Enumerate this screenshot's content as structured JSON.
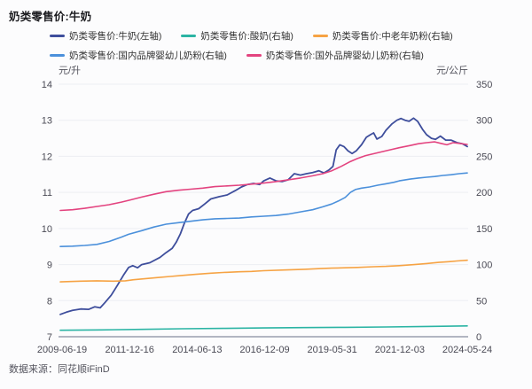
{
  "page": {
    "title": "奶类零售价:牛奶",
    "source": "数据来源：同花顺iFinD"
  },
  "axes": {
    "left_unit": "元/升",
    "right_unit": "元/公斤"
  },
  "colors": {
    "background": "#FCFCFD",
    "grid": "#EDEEF3",
    "axis_line": "#B2B6C2",
    "tick_text": "#4A4A55",
    "title_text": "#1B1B1F",
    "legend_text": "#333333",
    "unit_text": "#55555F",
    "source_text": "#55555F"
  },
  "chart_data": {
    "type": "line",
    "title": "奶类零售价:牛奶",
    "grid": true,
    "legend_position": "top-left",
    "x_tick_labels": [
      "2009-06-19",
      "2011-12-16",
      "2014-06-13",
      "2016-12-09",
      "2019-05-31",
      "2021-12-03",
      "2024-05-24"
    ],
    "x_range_note": "x values below are fractions 0-1 spanning 2009-06-19 to 2024-05-24",
    "left_axis": {
      "label": "元/升",
      "min": 7,
      "max": 14,
      "ticks": [
        14,
        13,
        12,
        11,
        10,
        9,
        8,
        7
      ]
    },
    "right_axis": {
      "label": "元/公斤",
      "min": 0,
      "max": 350,
      "ticks": [
        350,
        300,
        250,
        200,
        150,
        100,
        50,
        0
      ]
    },
    "series": [
      {
        "name": "奶类零售价:牛奶(左轴)",
        "axis": "left",
        "color": "#3E4E9C",
        "points": [
          [
            0,
            7.62
          ],
          [
            0.015,
            7.68
          ],
          [
            0.03,
            7.73
          ],
          [
            0.05,
            7.77
          ],
          [
            0.07,
            7.76
          ],
          [
            0.085,
            7.83
          ],
          [
            0.098,
            7.8
          ],
          [
            0.11,
            7.95
          ],
          [
            0.125,
            8.15
          ],
          [
            0.14,
            8.42
          ],
          [
            0.155,
            8.7
          ],
          [
            0.168,
            8.92
          ],
          [
            0.178,
            8.97
          ],
          [
            0.19,
            8.91
          ],
          [
            0.2,
            9.0
          ],
          [
            0.22,
            9.05
          ],
          [
            0.245,
            9.2
          ],
          [
            0.26,
            9.33
          ],
          [
            0.275,
            9.45
          ],
          [
            0.285,
            9.62
          ],
          [
            0.295,
            9.85
          ],
          [
            0.305,
            10.15
          ],
          [
            0.315,
            10.4
          ],
          [
            0.325,
            10.5
          ],
          [
            0.34,
            10.55
          ],
          [
            0.355,
            10.68
          ],
          [
            0.37,
            10.82
          ],
          [
            0.39,
            10.88
          ],
          [
            0.41,
            10.93
          ],
          [
            0.43,
            11.05
          ],
          [
            0.445,
            11.15
          ],
          [
            0.46,
            11.22
          ],
          [
            0.475,
            11.25
          ],
          [
            0.49,
            11.22
          ],
          [
            0.5,
            11.32
          ],
          [
            0.515,
            11.4
          ],
          [
            0.53,
            11.32
          ],
          [
            0.545,
            11.3
          ],
          [
            0.56,
            11.35
          ],
          [
            0.575,
            11.52
          ],
          [
            0.59,
            11.48
          ],
          [
            0.605,
            11.52
          ],
          [
            0.62,
            11.55
          ],
          [
            0.635,
            11.6
          ],
          [
            0.648,
            11.54
          ],
          [
            0.66,
            11.62
          ],
          [
            0.67,
            11.72
          ],
          [
            0.678,
            12.18
          ],
          [
            0.687,
            12.32
          ],
          [
            0.697,
            12.27
          ],
          [
            0.707,
            12.15
          ],
          [
            0.717,
            12.08
          ],
          [
            0.727,
            12.15
          ],
          [
            0.74,
            12.32
          ],
          [
            0.752,
            12.53
          ],
          [
            0.762,
            12.6
          ],
          [
            0.77,
            12.65
          ],
          [
            0.778,
            12.48
          ],
          [
            0.79,
            12.55
          ],
          [
            0.8,
            12.72
          ],
          [
            0.815,
            12.9
          ],
          [
            0.827,
            13.0
          ],
          [
            0.837,
            13.05
          ],
          [
            0.847,
            13.0
          ],
          [
            0.857,
            12.97
          ],
          [
            0.868,
            13.06
          ],
          [
            0.878,
            12.97
          ],
          [
            0.89,
            12.75
          ],
          [
            0.9,
            12.6
          ],
          [
            0.912,
            12.5
          ],
          [
            0.922,
            12.47
          ],
          [
            0.934,
            12.56
          ],
          [
            0.947,
            12.45
          ],
          [
            0.96,
            12.45
          ],
          [
            0.975,
            12.38
          ],
          [
            0.988,
            12.35
          ],
          [
            1,
            12.27
          ]
        ]
      },
      {
        "name": "奶类零售价:酸奶(右轴)",
        "axis": "right",
        "color": "#2BB4A4",
        "points": [
          [
            0,
            9
          ],
          [
            0.1,
            9.5
          ],
          [
            0.2,
            10.2
          ],
          [
            0.3,
            11
          ],
          [
            0.4,
            11.6
          ],
          [
            0.5,
            12.1
          ],
          [
            0.6,
            12.6
          ],
          [
            0.7,
            13
          ],
          [
            0.8,
            13.5
          ],
          [
            0.9,
            14.3
          ],
          [
            1,
            15
          ]
        ]
      },
      {
        "name": "奶类零售价:中老年奶粉(右轴)",
        "axis": "right",
        "color": "#F6A344",
        "points": [
          [
            0,
            76
          ],
          [
            0.05,
            77
          ],
          [
            0.09,
            77.5
          ],
          [
            0.13,
            77
          ],
          [
            0.16,
            77.5
          ],
          [
            0.18,
            79
          ],
          [
            0.21,
            80.5
          ],
          [
            0.24,
            82
          ],
          [
            0.27,
            83.5
          ],
          [
            0.3,
            85
          ],
          [
            0.333,
            86.5
          ],
          [
            0.37,
            88
          ],
          [
            0.4,
            89
          ],
          [
            0.44,
            90
          ],
          [
            0.47,
            90.5
          ],
          [
            0.5,
            91.5
          ],
          [
            0.55,
            92.5
          ],
          [
            0.6,
            93.5
          ],
          [
            0.64,
            94.5
          ],
          [
            0.667,
            95
          ],
          [
            0.7,
            95.5
          ],
          [
            0.73,
            96
          ],
          [
            0.77,
            97
          ],
          [
            0.8,
            97.5
          ],
          [
            0.833,
            98.5
          ],
          [
            0.87,
            100
          ],
          [
            0.9,
            101.5
          ],
          [
            0.93,
            103
          ],
          [
            0.955,
            104
          ],
          [
            0.975,
            105
          ],
          [
            1,
            106
          ]
        ]
      },
      {
        "name": "奶类零售价:国内品牌婴幼儿奶粉(右轴)",
        "axis": "right",
        "color": "#4B90DB",
        "points": [
          [
            0,
            125
          ],
          [
            0.03,
            125.5
          ],
          [
            0.06,
            126.5
          ],
          [
            0.09,
            128
          ],
          [
            0.12,
            132
          ],
          [
            0.15,
            138
          ],
          [
            0.168,
            142
          ],
          [
            0.2,
            147
          ],
          [
            0.23,
            152
          ],
          [
            0.26,
            156
          ],
          [
            0.29,
            158
          ],
          [
            0.32,
            160
          ],
          [
            0.35,
            162
          ],
          [
            0.38,
            163.5
          ],
          [
            0.41,
            164
          ],
          [
            0.44,
            164.5
          ],
          [
            0.47,
            166
          ],
          [
            0.5,
            167
          ],
          [
            0.53,
            168
          ],
          [
            0.56,
            170
          ],
          [
            0.59,
            173
          ],
          [
            0.62,
            176
          ],
          [
            0.645,
            180
          ],
          [
            0.667,
            184
          ],
          [
            0.683,
            188
          ],
          [
            0.7,
            193
          ],
          [
            0.713,
            200
          ],
          [
            0.725,
            204
          ],
          [
            0.74,
            206
          ],
          [
            0.76,
            207.5
          ],
          [
            0.78,
            210
          ],
          [
            0.8,
            212
          ],
          [
            0.82,
            214
          ],
          [
            0.833,
            216
          ],
          [
            0.86,
            218.5
          ],
          [
            0.88,
            220
          ],
          [
            0.9,
            221
          ],
          [
            0.92,
            222
          ],
          [
            0.94,
            223.5
          ],
          [
            0.96,
            224.5
          ],
          [
            0.98,
            226
          ],
          [
            1,
            227
          ]
        ]
      },
      {
        "name": "奶类零售价:国外品牌婴幼儿奶粉(右轴)",
        "axis": "right",
        "color": "#E3437F",
        "points": [
          [
            0,
            175
          ],
          [
            0.03,
            176
          ],
          [
            0.06,
            178
          ],
          [
            0.09,
            180.5
          ],
          [
            0.12,
            183
          ],
          [
            0.15,
            186.5
          ],
          [
            0.168,
            189
          ],
          [
            0.2,
            193.5
          ],
          [
            0.23,
            197.5
          ],
          [
            0.26,
            201
          ],
          [
            0.29,
            203
          ],
          [
            0.32,
            204.5
          ],
          [
            0.35,
            206
          ],
          [
            0.38,
            208
          ],
          [
            0.41,
            209
          ],
          [
            0.44,
            210
          ],
          [
            0.47,
            211.5
          ],
          [
            0.5,
            213
          ],
          [
            0.53,
            215
          ],
          [
            0.56,
            217.5
          ],
          [
            0.59,
            220
          ],
          [
            0.62,
            223
          ],
          [
            0.645,
            226
          ],
          [
            0.667,
            230
          ],
          [
            0.69,
            236
          ],
          [
            0.71,
            242
          ],
          [
            0.73,
            247
          ],
          [
            0.75,
            251
          ],
          [
            0.78,
            255
          ],
          [
            0.81,
            259
          ],
          [
            0.833,
            262
          ],
          [
            0.86,
            265
          ],
          [
            0.88,
            267.5
          ],
          [
            0.9,
            269
          ],
          [
            0.92,
            270
          ],
          [
            0.935,
            268
          ],
          [
            0.95,
            266
          ],
          [
            0.965,
            269
          ],
          [
            0.98,
            268
          ],
          [
            1,
            266.5
          ]
        ]
      }
    ]
  }
}
